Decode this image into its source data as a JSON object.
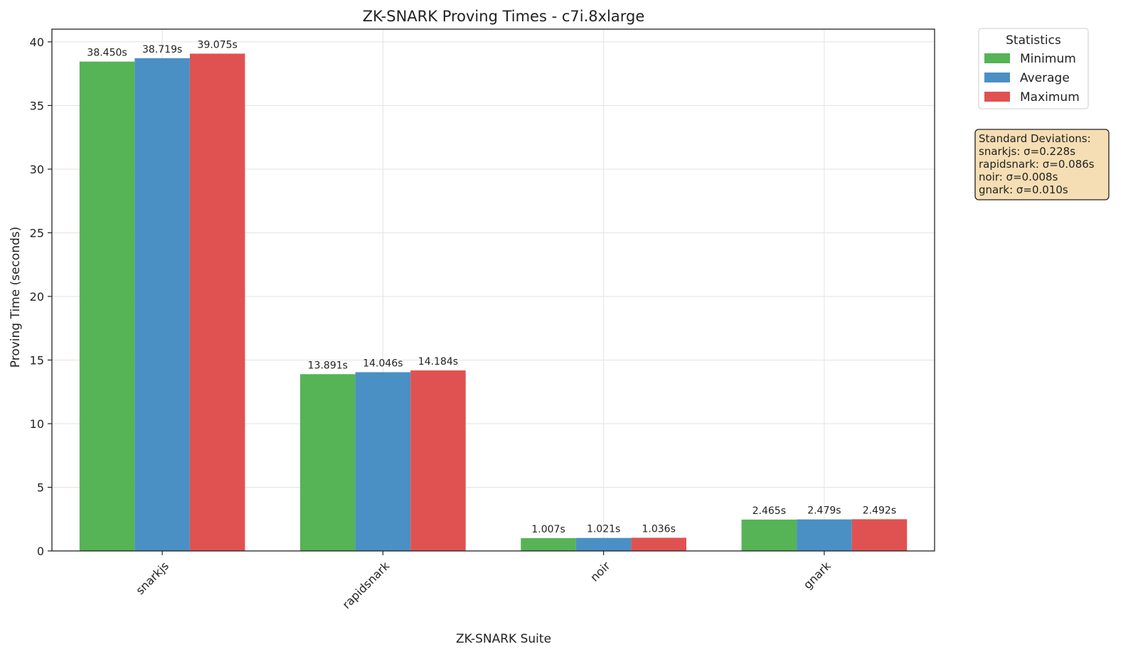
{
  "chart_data": {
    "type": "bar",
    "title": "ZK-SNARK Proving Times - c7i.8xlarge",
    "xlabel": "ZK-SNARK Suite",
    "ylabel": "Proving Time (seconds)",
    "categories": [
      "snarkjs",
      "rapidsnark",
      "noir",
      "gnark"
    ],
    "series": [
      {
        "name": "Minimum",
        "color": "#56b356",
        "values": [
          38.45,
          13.891,
          1.007,
          2.465
        ],
        "labels": [
          "38.450s",
          "13.891s",
          "1.007s",
          "2.465s"
        ]
      },
      {
        "name": "Average",
        "color": "#4a90c4",
        "values": [
          38.719,
          14.046,
          1.021,
          2.479
        ],
        "labels": [
          "38.719s",
          "14.046s",
          "1.021s",
          "2.479s"
        ]
      },
      {
        "name": "Maximum",
        "color": "#e05252",
        "values": [
          39.075,
          14.184,
          1.036,
          2.492
        ],
        "labels": [
          "39.075s",
          "14.184s",
          "1.036s",
          "2.492s"
        ]
      }
    ],
    "ylim": [
      0,
      41
    ],
    "yticks": [
      0,
      5,
      10,
      15,
      20,
      25,
      30,
      35,
      40
    ],
    "grid": true,
    "legend": {
      "title": "Statistics",
      "placement": "outside-top-right"
    },
    "annotation": {
      "lines": [
        "Standard Deviations:",
        "snarkjs: σ=0.228s",
        "rapidsnark: σ=0.086s",
        "noir: σ=0.008s",
        "gnark: σ=0.010s"
      ],
      "background": "#f5deb3"
    }
  }
}
